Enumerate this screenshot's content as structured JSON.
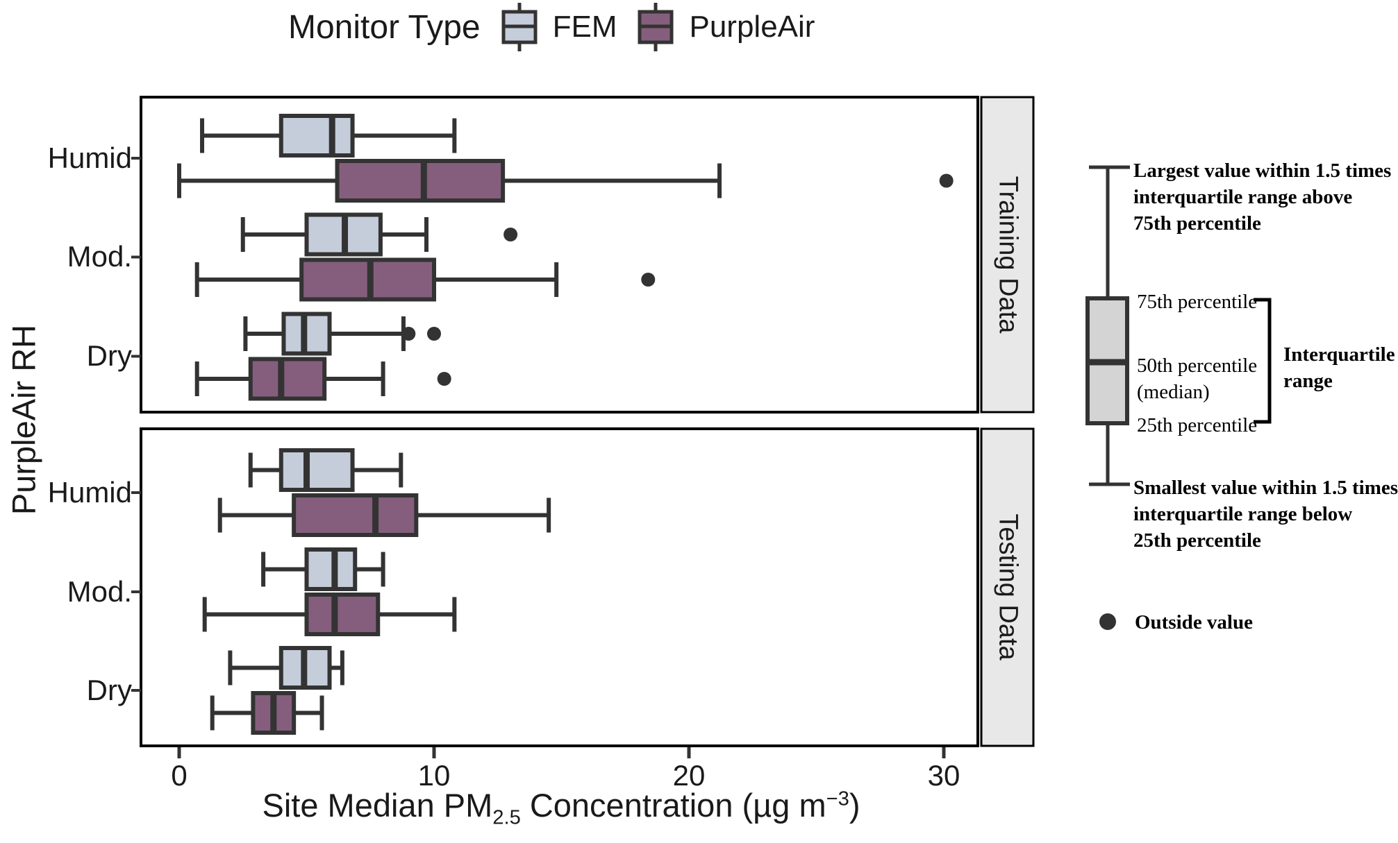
{
  "figure": {
    "legend": {
      "title": "Monitor Type",
      "items": [
        {
          "label": "FEM",
          "color": "#c5cdda"
        },
        {
          "label": "PurpleAir",
          "color": "#855e7d"
        }
      ]
    },
    "colors": {
      "stroke": "#333333",
      "outlier": "#333333",
      "panel_border": "#000000",
      "strip_bg": "#e8e8e8",
      "anatomy_box_fill": "#d4d4d4"
    },
    "y_axis_label": "PurpleAir RH",
    "categories": [
      "Humid",
      "Mod.",
      "Dry"
    ],
    "panel_strips": [
      "Training Data",
      "Testing Data"
    ],
    "x_axis": {
      "tick_labels": [
        "0",
        "10",
        "20",
        "30"
      ],
      "title_prefix": "Site Median PM",
      "title_sub": "2.5",
      "title_mid": " Concentration (µg m",
      "title_sup": "−3",
      "title_suffix": ")"
    },
    "annotation": {
      "top_lines": [
        "Largest value within 1.5 times",
        "interquartile range above",
        "75th percentile"
      ],
      "p75": "75th percentile",
      "p50": "50th percentile",
      "median_paren": "(median)",
      "p25": "25th percentile",
      "iqr_lines": [
        "Interquartile",
        "range"
      ],
      "bottom_lines": [
        "Smallest value within 1.5 times",
        "interquartile range below",
        "25th percentile"
      ],
      "outside": "Outside value"
    }
  },
  "chart_data": {
    "type": "boxplot-horizontal-grouped",
    "title": "",
    "xlabel": "Site Median PM2.5 Concentration (µg m⁻³)",
    "ylabel": "PurpleAir RH",
    "xlim": [
      -1.5,
      33
    ],
    "x_ticks": [
      0,
      10,
      20,
      30
    ],
    "categories": [
      "Humid",
      "Mod.",
      "Dry"
    ],
    "groups": [
      "FEM",
      "PurpleAir"
    ],
    "legend_position": "top",
    "grid": false,
    "panels": [
      {
        "label": "Training Data",
        "rows": [
          {
            "category": "Humid",
            "group": "FEM",
            "whisker_low": 0.9,
            "q1": 4.0,
            "median": 6.0,
            "q3": 6.8,
            "whisker_high": 10.8,
            "outliers": []
          },
          {
            "category": "Humid",
            "group": "PurpleAir",
            "whisker_low": 0.0,
            "q1": 6.2,
            "median": 9.6,
            "q3": 12.7,
            "whisker_high": 21.2,
            "outliers": [
              30.1
            ]
          },
          {
            "category": "Mod.",
            "group": "FEM",
            "whisker_low": 2.5,
            "q1": 5.0,
            "median": 6.5,
            "q3": 7.9,
            "whisker_high": 9.7,
            "outliers": [
              13.0
            ]
          },
          {
            "category": "Mod.",
            "group": "PurpleAir",
            "whisker_low": 0.7,
            "q1": 4.8,
            "median": 7.5,
            "q3": 10.0,
            "whisker_high": 14.8,
            "outliers": [
              18.4
            ]
          },
          {
            "category": "Dry",
            "group": "FEM",
            "whisker_low": 2.6,
            "q1": 4.1,
            "median": 4.9,
            "q3": 5.9,
            "whisker_high": 8.8,
            "outliers": [
              9.0,
              10.0
            ]
          },
          {
            "category": "Dry",
            "group": "PurpleAir",
            "whisker_low": 0.7,
            "q1": 2.8,
            "median": 4.0,
            "q3": 5.7,
            "whisker_high": 8.0,
            "outliers": [
              10.4
            ]
          }
        ]
      },
      {
        "label": "Testing Data",
        "rows": [
          {
            "category": "Humid",
            "group": "FEM",
            "whisker_low": 2.8,
            "q1": 4.0,
            "median": 5.0,
            "q3": 6.8,
            "whisker_high": 8.7,
            "outliers": []
          },
          {
            "category": "Humid",
            "group": "PurpleAir",
            "whisker_low": 1.6,
            "q1": 4.5,
            "median": 7.7,
            "q3": 9.3,
            "whisker_high": 14.5,
            "outliers": []
          },
          {
            "category": "Mod.",
            "group": "FEM",
            "whisker_low": 3.3,
            "q1": 5.0,
            "median": 6.1,
            "q3": 6.9,
            "whisker_high": 8.0,
            "outliers": []
          },
          {
            "category": "Mod.",
            "group": "PurpleAir",
            "whisker_low": 1.0,
            "q1": 5.0,
            "median": 6.1,
            "q3": 7.8,
            "whisker_high": 10.8,
            "outliers": []
          },
          {
            "category": "Dry",
            "group": "FEM",
            "whisker_low": 2.0,
            "q1": 4.0,
            "median": 4.9,
            "q3": 5.9,
            "whisker_high": 6.4,
            "outliers": []
          },
          {
            "category": "Dry",
            "group": "PurpleAir",
            "whisker_low": 1.3,
            "q1": 2.9,
            "median": 3.7,
            "q3": 4.5,
            "whisker_high": 5.6,
            "outliers": []
          }
        ]
      }
    ]
  }
}
